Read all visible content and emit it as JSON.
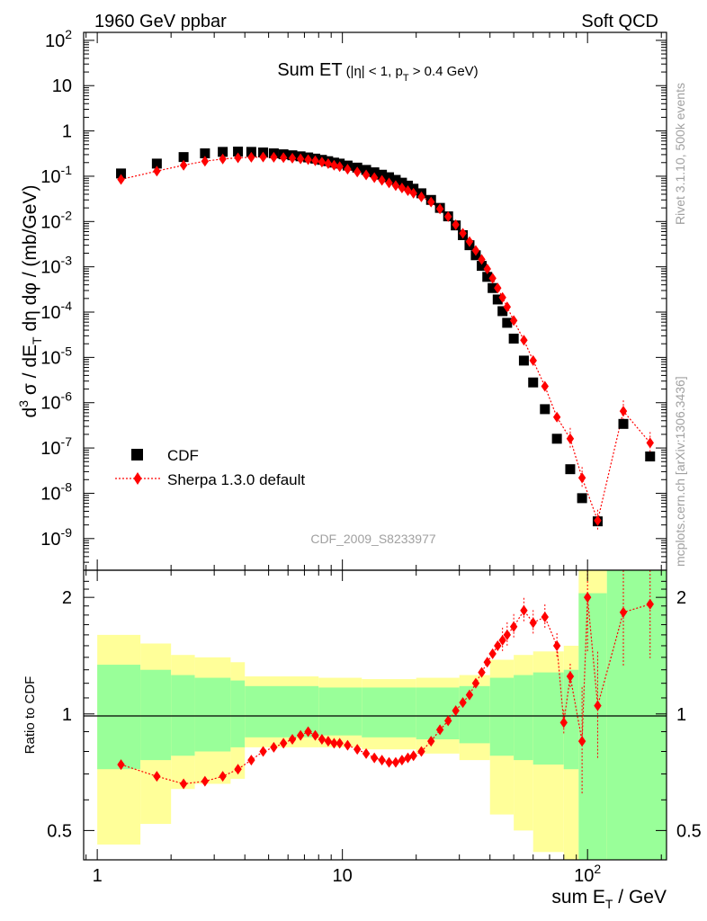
{
  "header": {
    "left": "1960 GeV ppbar",
    "right": "Soft QCD"
  },
  "side_labels": {
    "rivet": "Rivet 3.1.10,  500k events",
    "mcplots": "mcplots.cern.ch [arXiv:1306.3436]"
  },
  "analysis_id": "CDF_2009_S8233977",
  "colors": {
    "data": "#000000",
    "mc": "#ff0000",
    "band_inner": "#99ff99",
    "band_outer": "#ffff99"
  },
  "chart_data": [
    {
      "type": "scatter",
      "panel": "main",
      "title_main": "Sum ET",
      "title_cut_a": "(|η| < 1, p",
      "title_cut_sub": "T",
      "title_cut_b": " > 0.4 GeV)",
      "ylabel_parts": [
        "d",
        "3",
        " σ / dE",
        "T",
        " dη dφ / (mb/GeV)"
      ],
      "xscale": "log",
      "yscale": "log",
      "xlim": [
        0.88,
        210
      ],
      "ylim": [
        2e-10,
        150
      ],
      "y_ticks": [
        "10^2",
        "10",
        "1",
        "10^-1",
        "10^-2",
        "10^-3",
        "10^-4",
        "10^-5",
        "10^-6",
        "10^-7",
        "10^-8",
        "10^-9"
      ],
      "legend_position": "bottom-left",
      "legend": [
        {
          "label": "CDF",
          "marker": "square"
        },
        {
          "label": "Sherpa 1.3.0 default",
          "marker": "diamond-dotted-line"
        }
      ],
      "series": [
        {
          "name": "CDF",
          "points": [
            [
              1.25,
              0.115
            ],
            [
              1.75,
              0.19
            ],
            [
              2.25,
              0.265
            ],
            [
              2.75,
              0.32
            ],
            [
              3.25,
              0.345
            ],
            [
              3.75,
              0.35
            ],
            [
              4.25,
              0.345
            ],
            [
              4.75,
              0.335
            ],
            [
              5.25,
              0.32
            ],
            [
              5.75,
              0.305
            ],
            [
              6.25,
              0.29
            ],
            [
              6.75,
              0.275
            ],
            [
              7.25,
              0.26
            ],
            [
              7.75,
              0.245
            ],
            [
              8.25,
              0.23
            ],
            [
              8.75,
              0.215
            ],
            [
              9.25,
              0.2
            ],
            [
              9.75,
              0.19
            ],
            [
              10.5,
              0.172
            ],
            [
              11.5,
              0.155
            ],
            [
              12.5,
              0.138
            ],
            [
              13.5,
              0.122
            ],
            [
              14.5,
              0.108
            ],
            [
              15.5,
              0.095
            ],
            [
              16.5,
              0.083
            ],
            [
              17.5,
              0.072
            ],
            [
              18.5,
              0.062
            ],
            [
              19.5,
              0.053
            ],
            [
              21,
              0.042
            ],
            [
              23,
              0.03
            ],
            [
              25,
              0.02
            ],
            [
              27,
              0.013
            ],
            [
              29,
              0.0082
            ],
            [
              31,
              0.005
            ],
            [
              33,
              0.003
            ],
            [
              35,
              0.0018
            ],
            [
              37,
              0.00105
            ],
            [
              39,
              0.0006
            ],
            [
              41,
              0.00034
            ],
            [
              43,
              0.00019
            ],
            [
              45,
              0.000105
            ],
            [
              47,
              5.8e-05
            ],
            [
              50,
              2.6e-05
            ],
            [
              55,
              8.5e-06
            ],
            [
              60,
              2.8e-06
            ],
            [
              67,
              7.2e-07
            ],
            [
              75,
              1.6e-07
            ],
            [
              85,
              3.4e-08
            ],
            [
              95,
              7.8e-09
            ],
            [
              110,
              2.4e-09
            ],
            [
              140,
              3.4e-07
            ],
            [
              180,
              6.5e-08
            ]
          ]
        },
        {
          "name": "Sherpa 1.3.0 default",
          "points": [
            [
              1.25,
              0.085
            ],
            [
              1.75,
              0.13
            ],
            [
              2.25,
              0.175
            ],
            [
              2.75,
              0.215
            ],
            [
              3.25,
              0.24
            ],
            [
              3.75,
              0.255
            ],
            [
              4.25,
              0.262
            ],
            [
              4.75,
              0.265
            ],
            [
              5.25,
              0.262
            ],
            [
              5.75,
              0.258
            ],
            [
              6.25,
              0.25
            ],
            [
              6.75,
              0.242
            ],
            [
              7.25,
              0.232
            ],
            [
              7.75,
              0.22
            ],
            [
              8.25,
              0.205
            ],
            [
              8.75,
              0.19
            ],
            [
              9.25,
              0.175
            ],
            [
              9.75,
              0.163
            ],
            [
              10.5,
              0.143
            ],
            [
              11.5,
              0.124
            ],
            [
              12.5,
              0.107
            ],
            [
              13.5,
              0.093
            ],
            [
              14.5,
              0.081
            ],
            [
              15.5,
              0.071
            ],
            [
              16.5,
              0.062
            ],
            [
              17.5,
              0.055
            ],
            [
              18.5,
              0.048
            ],
            [
              19.5,
              0.042
            ],
            [
              21,
              0.035
            ],
            [
              23,
              0.027
            ],
            [
              25,
              0.019
            ],
            [
              27,
              0.0128
            ],
            [
              29,
              0.0085
            ],
            [
              31,
              0.0055
            ],
            [
              33,
              0.0036
            ],
            [
              35,
              0.0023
            ],
            [
              37,
              0.00145
            ],
            [
              39,
              0.0009
            ],
            [
              41,
              0.00056
            ],
            [
              43,
              0.00034
            ],
            [
              45,
              0.00021
            ],
            [
              47,
              0.00013
            ],
            [
              50,
              6.5e-05
            ],
            [
              55,
              2.4e-05
            ],
            [
              60,
              8.5e-06
            ],
            [
              67,
              2.3e-06
            ],
            [
              75,
              4.8e-07
            ],
            [
              85,
              1.6e-07
            ],
            [
              95,
              2.2e-08
            ],
            [
              110,
              2.5e-09
            ],
            [
              140,
              6.5e-07
            ],
            [
              180,
              1.3e-07
            ]
          ]
        }
      ]
    },
    {
      "type": "line",
      "panel": "ratio",
      "ylabel": "Ratio to CDF",
      "xlabel_parts": [
        "sum E",
        "T",
        " / GeV"
      ],
      "xscale": "log",
      "yscale": "log",
      "xlim": [
        0.88,
        210
      ],
      "ylim": [
        0.42,
        2.35
      ],
      "y_ticks": [
        0.5,
        1,
        2
      ],
      "x_ticks": [
        {
          "value": 1,
          "label": "1"
        },
        {
          "value": 10,
          "label": "10"
        },
        {
          "value": 100,
          "label": "10^2"
        }
      ],
      "reference_line": 1,
      "bands": [
        {
          "x0": 1.0,
          "x1": 1.5,
          "inner": [
            0.72,
            1.34
          ],
          "outer": [
            0.46,
            1.6
          ]
        },
        {
          "x0": 1.5,
          "x1": 2.0,
          "inner": [
            0.76,
            1.3
          ],
          "outer": [
            0.52,
            1.52
          ]
        },
        {
          "x0": 2.0,
          "x1": 2.5,
          "inner": [
            0.78,
            1.26
          ],
          "outer": [
            0.64,
            1.42
          ]
        },
        {
          "x0": 2.5,
          "x1": 3.5,
          "inner": [
            0.8,
            1.24
          ],
          "outer": [
            0.66,
            1.4
          ]
        },
        {
          "x0": 3.5,
          "x1": 4.0,
          "inner": [
            0.82,
            1.22
          ],
          "outer": [
            0.68,
            1.36
          ]
        },
        {
          "x0": 4.0,
          "x1": 8.0,
          "inner": [
            0.87,
            1.18
          ],
          "outer": [
            0.82,
            1.25
          ]
        },
        {
          "x0": 8.0,
          "x1": 12.0,
          "inner": [
            0.88,
            1.17
          ],
          "outer": [
            0.82,
            1.24
          ]
        },
        {
          "x0": 12.0,
          "x1": 20.0,
          "inner": [
            0.87,
            1.17
          ],
          "outer": [
            0.81,
            1.23
          ]
        },
        {
          "x0": 20.0,
          "x1": 30.0,
          "inner": [
            0.86,
            1.17
          ],
          "outer": [
            0.79,
            1.24
          ]
        },
        {
          "x0": 30.0,
          "x1": 40.0,
          "inner": [
            0.84,
            1.18
          ],
          "outer": [
            0.76,
            1.26
          ]
        },
        {
          "x0": 40.0,
          "x1": 50.0,
          "inner": [
            0.78,
            1.24
          ],
          "outer": [
            0.55,
            1.38
          ]
        },
        {
          "x0": 50.0,
          "x1": 60.0,
          "inner": [
            0.76,
            1.26
          ],
          "outer": [
            0.5,
            1.42
          ]
        },
        {
          "x0": 60.0,
          "x1": 80.0,
          "inner": [
            0.74,
            1.28
          ],
          "outer": [
            0.44,
            1.45
          ]
        },
        {
          "x0": 80.0,
          "x1": 92.0,
          "inner": [
            0.72,
            1.3
          ],
          "outer": [
            0.42,
            1.5
          ]
        },
        {
          "x0": 92.0,
          "x1": 120.0,
          "inner": [
            0.42,
            2.05
          ],
          "outer": [
            0.42,
            2.35
          ]
        },
        {
          "x0": 120.0,
          "x1": 210.0,
          "inner": [
            0.42,
            2.35
          ],
          "outer": [
            0.42,
            2.35
          ]
        }
      ],
      "series": [
        {
          "name": "Sherpa 1.3.0 default",
          "points": [
            [
              1.25,
              0.74
            ],
            [
              1.75,
              0.69
            ],
            [
              2.25,
              0.66
            ],
            [
              2.75,
              0.67
            ],
            [
              3.25,
              0.69
            ],
            [
              3.75,
              0.72
            ],
            [
              4.25,
              0.76
            ],
            [
              4.75,
              0.8
            ],
            [
              5.25,
              0.82
            ],
            [
              5.75,
              0.84
            ],
            [
              6.25,
              0.86
            ],
            [
              6.75,
              0.88
            ],
            [
              7.25,
              0.9
            ],
            [
              7.75,
              0.88
            ],
            [
              8.25,
              0.86
            ],
            [
              8.75,
              0.85
            ],
            [
              9.25,
              0.84
            ],
            [
              9.75,
              0.84
            ],
            [
              10.5,
              0.83
            ],
            [
              11.5,
              0.81
            ],
            [
              12.5,
              0.79
            ],
            [
              13.5,
              0.77
            ],
            [
              14.5,
              0.76
            ],
            [
              15.5,
              0.75
            ],
            [
              16.5,
              0.75
            ],
            [
              17.5,
              0.76
            ],
            [
              18.5,
              0.77
            ],
            [
              19.5,
              0.78
            ],
            [
              21,
              0.8
            ],
            [
              23,
              0.85
            ],
            [
              25,
              0.91
            ],
            [
              27,
              0.96
            ],
            [
              29,
              1.02
            ],
            [
              31,
              1.07
            ],
            [
              33,
              1.12
            ],
            [
              35,
              1.2
            ],
            [
              37,
              1.28
            ],
            [
              39,
              1.36
            ],
            [
              41,
              1.43
            ],
            [
              43,
              1.5
            ],
            [
              45,
              1.55
            ],
            [
              47,
              1.6
            ],
            [
              50,
              1.68
            ],
            [
              55,
              1.85
            ],
            [
              60,
              1.72
            ],
            [
              67,
              1.78
            ],
            [
              75,
              1.5
            ],
            [
              80,
              0.95
            ],
            [
              85,
              1.25
            ],
            [
              95,
              0.85
            ],
            [
              100,
              2.0
            ],
            [
              110,
              1.05
            ],
            [
              140,
              1.83
            ],
            [
              180,
              1.92
            ]
          ]
        }
      ]
    }
  ]
}
